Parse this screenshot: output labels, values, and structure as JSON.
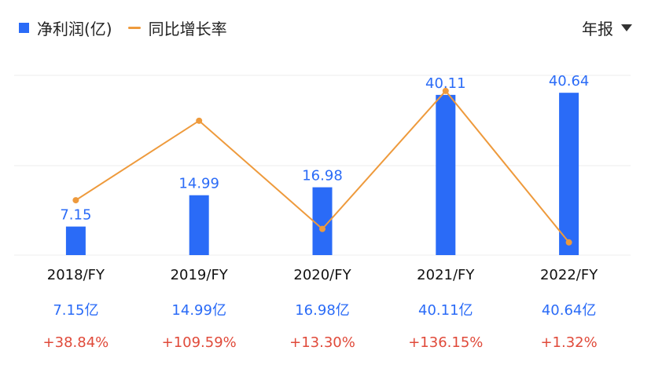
{
  "legend": {
    "bar_label": "净利润(亿)",
    "line_label": "同比增长率"
  },
  "period_selector": {
    "value": "年报"
  },
  "colors": {
    "bar": "#2a6bf7",
    "line": "#ee9a3c",
    "growth_text": "#e04a3a",
    "value_text": "#2a6bf7",
    "grid": "#eeeeee"
  },
  "chart_data": {
    "type": "bar",
    "title": "",
    "xlabel": "",
    "ylabel": "",
    "categories": [
      "2018/FY",
      "2019/FY",
      "2020/FY",
      "2021/FY",
      "2022/FY"
    ],
    "series": [
      {
        "name": "净利润(亿)",
        "type": "bar",
        "values": [
          7.15,
          14.99,
          16.98,
          40.11,
          40.64
        ],
        "data_labels": [
          "7.15",
          "14.99",
          "16.98",
          "40.11",
          "40.64"
        ]
      },
      {
        "name": "同比增长率",
        "type": "line",
        "values": [
          38.84,
          109.59,
          13.3,
          136.15,
          1.32
        ],
        "unit": "%"
      }
    ],
    "ylim": [
      0,
      45
    ],
    "y2lim": [
      -10,
      150
    ],
    "grid": true,
    "legend_position": "top-left"
  },
  "summary": {
    "values": [
      "7.15亿",
      "14.99亿",
      "16.98亿",
      "40.11亿",
      "40.64亿"
    ],
    "growth": [
      "+38.84%",
      "+109.59%",
      "+13.30%",
      "+136.15%",
      "+1.32%"
    ]
  }
}
